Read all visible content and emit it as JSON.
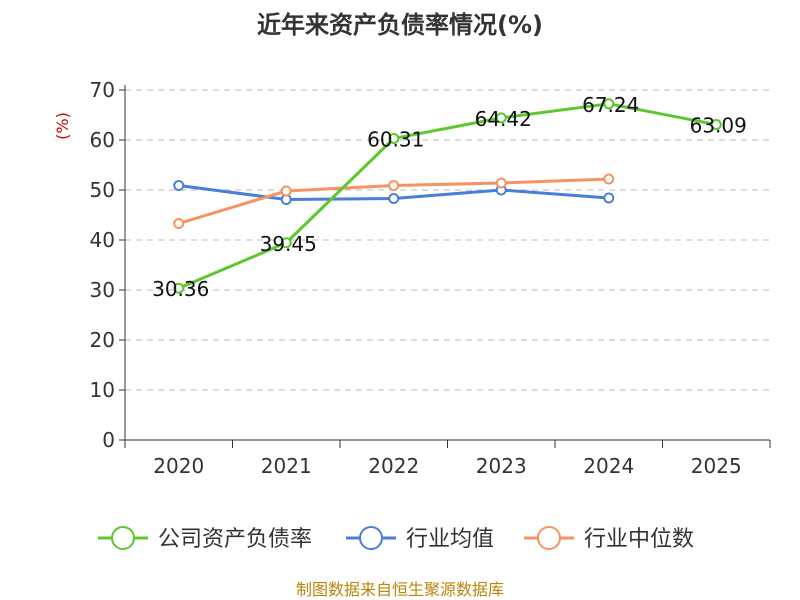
{
  "chart_data": {
    "type": "line",
    "title": "近年来资产负债率情况(%)",
    "ylabel": "(%)",
    "categories": [
      "2020",
      "2021",
      "2022",
      "2023",
      "2024",
      "2025"
    ],
    "ylim": [
      0,
      70
    ],
    "yticks": [
      0,
      10,
      20,
      30,
      40,
      50,
      60,
      70
    ],
    "grid": true,
    "legend_position": "bottom",
    "series": [
      {
        "name": "公司资产负债率",
        "color": "#5cc72f",
        "values": [
          30.36,
          39.45,
          60.31,
          64.42,
          67.24,
          63.09
        ],
        "labels": [
          "30.36",
          "39.45",
          "60.31",
          "64.42",
          "67.24",
          "63.09"
        ]
      },
      {
        "name": "行业均值",
        "color": "#4a7fd8",
        "values": [
          50.9,
          48.1,
          48.3,
          50.0,
          48.4,
          null
        ]
      },
      {
        "name": "行业中位数",
        "color": "#f79261",
        "values": [
          43.3,
          49.8,
          50.9,
          51.4,
          52.2,
          null
        ]
      }
    ]
  },
  "source": "制图数据来自恒生聚源数据库"
}
